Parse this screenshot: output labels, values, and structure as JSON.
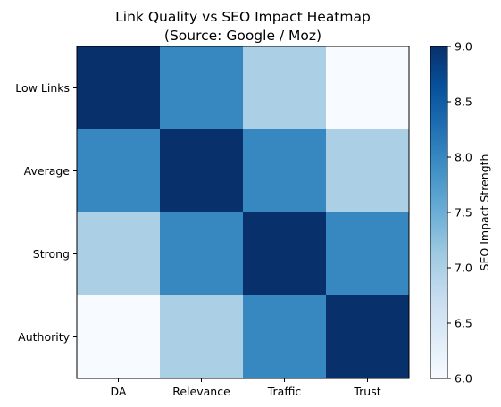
{
  "chart_data": {
    "type": "heatmap",
    "title_line1": "Link Quality vs SEO Impact Heatmap",
    "title_line2": "(Source: Google / Moz)",
    "rows": [
      "Low Links",
      "Average",
      "Strong",
      "Authority"
    ],
    "columns": [
      "DA",
      "Relevance",
      "Traffic",
      "Trust"
    ],
    "values": [
      [
        9,
        8,
        7,
        6
      ],
      [
        8,
        9,
        8,
        7
      ],
      [
        7,
        8,
        9,
        8
      ],
      [
        6,
        7,
        8,
        9
      ]
    ],
    "colormap": "Blues",
    "colorbar": {
      "label": "SEO Impact Strength",
      "range": [
        6.0,
        9.0
      ],
      "ticks": [
        "6.0",
        "6.5",
        "7.0",
        "7.5",
        "8.0",
        "8.5",
        "9.0"
      ]
    },
    "colors": {
      "6": "#f7fbff",
      "7": "#abd0e6",
      "8": "#3787c0",
      "9": "#08306b"
    }
  }
}
